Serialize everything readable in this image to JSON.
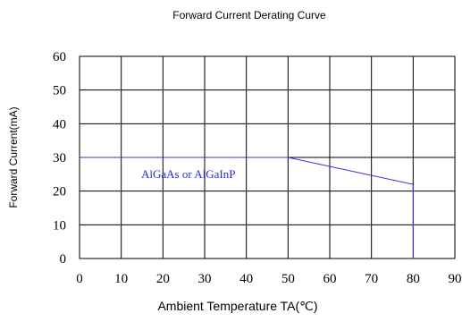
{
  "chart_data": {
    "type": "line",
    "title": "Forward Current Derating Curve",
    "xlabel": "Ambient Temperature TA(℃)",
    "ylabel": "Forward Current(mA)",
    "xlim": [
      0,
      90
    ],
    "ylim": [
      0,
      60
    ],
    "xticks": [
      "0",
      "10",
      "20",
      "30",
      "40",
      "50",
      "60",
      "70",
      "80",
      "90"
    ],
    "yticks": [
      "0",
      "10",
      "20",
      "30",
      "40",
      "50",
      "60"
    ],
    "grid": true,
    "series": [
      {
        "name": "AlGaAs or AlGaInP",
        "x": [
          0,
          50,
          80,
          80
        ],
        "y": [
          30,
          30,
          22,
          0
        ]
      }
    ],
    "colors": {
      "curve": "#3030e0",
      "grid": "#000000"
    }
  }
}
